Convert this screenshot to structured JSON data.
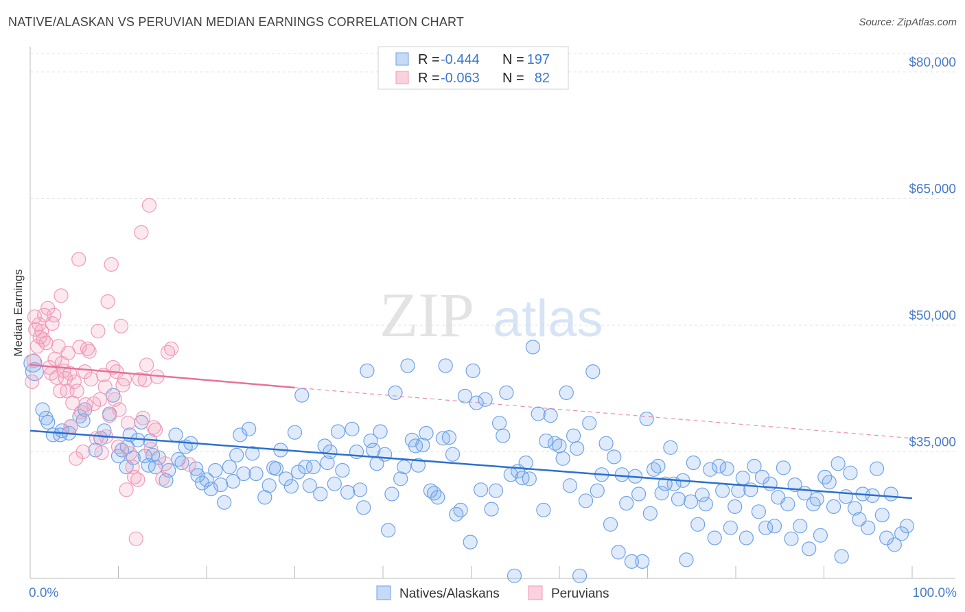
{
  "title": "NATIVE/ALASKAN VS PERUVIAN MEDIAN EARNINGS CORRELATION CHART",
  "source": "Source: ZipAtlas.com",
  "watermark": {
    "zip": "ZIP",
    "atlas": "atlas"
  },
  "legend_top": [
    {
      "r_label": "R =",
      "r_value": "-0.444",
      "n_label": "N =",
      "n_value": "197",
      "color": "#6fa2e8"
    },
    {
      "r_label": "R =",
      "r_value": "-0.063",
      "n_label": "N =",
      "n_value": "82",
      "color": "#f29ab8"
    }
  ],
  "chart_data": {
    "type": "scatter",
    "title": "NATIVE/ALASKAN VS PERUVIAN MEDIAN EARNINGS CORRELATION CHART",
    "ylabel": "Median Earnings",
    "xlabel": "",
    "xlim": [
      0,
      100
    ],
    "ylim": [
      20000,
      83000
    ],
    "x_tick_labels": [
      "0.0%",
      "100.0%"
    ],
    "y_ticks": [
      {
        "value": 35000,
        "label": "$35,000"
      },
      {
        "value": 50000,
        "label": "$50,000"
      },
      {
        "value": 65000,
        "label": "$65,000"
      },
      {
        "value": 80000,
        "label": "$80,000"
      }
    ],
    "grid": "horizontal dashed",
    "legend_position": "bottom-center",
    "series": [
      {
        "name": "Natives/Alaskans",
        "color": "#6fa2e8",
        "line_color": "#2c6fcf",
        "trend": {
          "x0": 0,
          "y0": 37500,
          "x1": 100,
          "y1": 29500
        },
        "points": [
          [
            0.3,
            45500
          ],
          [
            0.5,
            44500
          ],
          [
            1.4,
            40000
          ],
          [
            1.8,
            39000
          ],
          [
            2.0,
            38500
          ],
          [
            2.6,
            37000
          ],
          [
            3.4,
            37000
          ],
          [
            3.6,
            37500
          ],
          [
            4.4,
            37200
          ],
          [
            4.6,
            38000
          ],
          [
            5.6,
            39200
          ],
          [
            6.0,
            38700
          ],
          [
            6.2,
            40000
          ],
          [
            7.4,
            35200
          ],
          [
            8.0,
            36600
          ],
          [
            8.4,
            37500
          ],
          [
            9.0,
            39500
          ],
          [
            9.4,
            41700
          ],
          [
            10.0,
            34500
          ],
          [
            10.4,
            35200
          ],
          [
            10.9,
            33200
          ],
          [
            11.0,
            35600
          ],
          [
            11.3,
            37000
          ],
          [
            11.7,
            34300
          ],
          [
            12.2,
            36400
          ],
          [
            12.6,
            38500
          ],
          [
            13.0,
            34500
          ],
          [
            13.4,
            33400
          ],
          [
            13.6,
            36300
          ],
          [
            13.9,
            34600
          ],
          [
            14.2,
            33200
          ],
          [
            14.6,
            34300
          ],
          [
            15.4,
            31600
          ],
          [
            15.7,
            32800
          ],
          [
            16.5,
            37000
          ],
          [
            16.8,
            34100
          ],
          [
            17.2,
            33700
          ],
          [
            17.6,
            35600
          ],
          [
            18.2,
            36000
          ],
          [
            18.8,
            33000
          ],
          [
            19.0,
            32200
          ],
          [
            19.5,
            31300
          ],
          [
            20.0,
            31700
          ],
          [
            20.5,
            30600
          ],
          [
            21.0,
            32800
          ],
          [
            21.6,
            31100
          ],
          [
            22.0,
            29000
          ],
          [
            22.6,
            33200
          ],
          [
            23.0,
            31500
          ],
          [
            23.4,
            34600
          ],
          [
            23.8,
            37000
          ],
          [
            24.2,
            32400
          ],
          [
            24.8,
            37700
          ],
          [
            25.2,
            34800
          ],
          [
            25.6,
            32400
          ],
          [
            26.6,
            29600
          ],
          [
            27.1,
            31000
          ],
          [
            27.6,
            33100
          ],
          [
            27.9,
            33000
          ],
          [
            28.4,
            35200
          ],
          [
            29.0,
            31800
          ],
          [
            29.6,
            30900
          ],
          [
            30.0,
            37300
          ],
          [
            30.4,
            32600
          ],
          [
            30.8,
            41700
          ],
          [
            31.2,
            33200
          ],
          [
            31.7,
            31000
          ],
          [
            32.1,
            33200
          ],
          [
            32.9,
            30000
          ],
          [
            33.4,
            35700
          ],
          [
            33.7,
            33700
          ],
          [
            34.0,
            35000
          ],
          [
            34.5,
            31200
          ],
          [
            34.9,
            37400
          ],
          [
            35.4,
            32800
          ],
          [
            36.0,
            30200
          ],
          [
            36.5,
            37700
          ],
          [
            37.0,
            35000
          ],
          [
            37.4,
            30500
          ],
          [
            37.8,
            28400
          ],
          [
            38.2,
            44600
          ],
          [
            38.6,
            36300
          ],
          [
            38.9,
            35200
          ],
          [
            39.3,
            33600
          ],
          [
            39.7,
            37400
          ],
          [
            40.2,
            34700
          ],
          [
            40.6,
            25700
          ],
          [
            41.0,
            30000
          ],
          [
            41.4,
            42000
          ],
          [
            42.0,
            31800
          ],
          [
            42.4,
            33200
          ],
          [
            42.8,
            45200
          ],
          [
            43.3,
            36400
          ],
          [
            43.7,
            35700
          ],
          [
            44.0,
            33400
          ],
          [
            44.5,
            35800
          ],
          [
            44.9,
            37200
          ],
          [
            45.4,
            30400
          ],
          [
            45.8,
            30100
          ],
          [
            46.2,
            29600
          ],
          [
            46.8,
            36600
          ],
          [
            47.1,
            45200
          ],
          [
            47.5,
            36700
          ],
          [
            47.9,
            34700
          ],
          [
            48.3,
            27600
          ],
          [
            48.8,
            28100
          ],
          [
            49.3,
            41600
          ],
          [
            49.9,
            24300
          ],
          [
            50.6,
            40800
          ],
          [
            50.2,
            44600
          ],
          [
            51.1,
            30500
          ],
          [
            51.6,
            41200
          ],
          [
            52.3,
            28200
          ],
          [
            52.8,
            30400
          ],
          [
            53.2,
            38400
          ],
          [
            53.6,
            36900
          ],
          [
            54.0,
            42000
          ],
          [
            54.5,
            32300
          ],
          [
            54.9,
            20300
          ],
          [
            55.3,
            32700
          ],
          [
            55.8,
            31900
          ],
          [
            56.2,
            33700
          ],
          [
            56.6,
            31800
          ],
          [
            57.0,
            47400
          ],
          [
            57.6,
            39500
          ],
          [
            58.2,
            28100
          ],
          [
            58.5,
            36300
          ],
          [
            59.0,
            39300
          ],
          [
            59.5,
            36000
          ],
          [
            60.0,
            35700
          ],
          [
            60.4,
            34200
          ],
          [
            60.8,
            42000
          ],
          [
            61.2,
            31000
          ],
          [
            61.6,
            36900
          ],
          [
            62.0,
            35400
          ],
          [
            62.3,
            20300
          ],
          [
            63.0,
            29200
          ],
          [
            63.4,
            38400
          ],
          [
            63.8,
            44500
          ],
          [
            64.3,
            30400
          ],
          [
            64.8,
            32300
          ],
          [
            65.3,
            36000
          ],
          [
            65.8,
            26400
          ],
          [
            66.2,
            34400
          ],
          [
            66.7,
            23100
          ],
          [
            67.1,
            32300
          ],
          [
            67.6,
            28900
          ],
          [
            68.2,
            22000
          ],
          [
            68.6,
            32100
          ],
          [
            69.0,
            30000
          ],
          [
            69.4,
            22000
          ],
          [
            69.9,
            38900
          ],
          [
            70.3,
            27700
          ],
          [
            70.7,
            32900
          ],
          [
            71.2,
            33300
          ],
          [
            71.6,
            30100
          ],
          [
            72.0,
            31200
          ],
          [
            72.6,
            35500
          ],
          [
            73.0,
            31200
          ],
          [
            73.5,
            29400
          ],
          [
            74.0,
            31600
          ],
          [
            74.4,
            22200
          ],
          [
            74.9,
            29100
          ],
          [
            75.2,
            33700
          ],
          [
            75.7,
            26400
          ],
          [
            76.2,
            29900
          ],
          [
            76.6,
            28800
          ],
          [
            77.1,
            32900
          ],
          [
            77.6,
            24800
          ],
          [
            78.1,
            33300
          ],
          [
            78.5,
            30400
          ],
          [
            79.0,
            33000
          ],
          [
            79.4,
            26000
          ],
          [
            79.9,
            28500
          ],
          [
            80.3,
            30400
          ],
          [
            80.8,
            31900
          ],
          [
            81.2,
            24800
          ],
          [
            81.7,
            30500
          ],
          [
            82.1,
            33300
          ],
          [
            82.6,
            27900
          ],
          [
            83.0,
            32000
          ],
          [
            83.4,
            26000
          ],
          [
            83.9,
            31200
          ],
          [
            84.4,
            26200
          ],
          [
            84.8,
            29600
          ],
          [
            85.4,
            33100
          ],
          [
            85.9,
            28800
          ],
          [
            86.3,
            24700
          ],
          [
            86.7,
            31100
          ],
          [
            87.3,
            26200
          ],
          [
            87.8,
            30100
          ],
          [
            88.3,
            23500
          ],
          [
            88.8,
            28800
          ],
          [
            89.2,
            29400
          ],
          [
            89.6,
            25100
          ],
          [
            90.1,
            32000
          ],
          [
            90.6,
            31400
          ],
          [
            91.1,
            28500
          ],
          [
            91.6,
            33600
          ],
          [
            92.0,
            22600
          ],
          [
            92.5,
            29700
          ],
          [
            93.0,
            32500
          ],
          [
            93.5,
            28300
          ],
          [
            94.0,
            27000
          ],
          [
            94.4,
            30000
          ],
          [
            95.0,
            26000
          ],
          [
            95.5,
            29800
          ],
          [
            96.0,
            33000
          ],
          [
            96.6,
            27500
          ],
          [
            97.1,
            24800
          ],
          [
            97.6,
            30000
          ],
          [
            98.0,
            24000
          ],
          [
            98.8,
            25300
          ],
          [
            99.4,
            26200
          ]
        ]
      },
      {
        "name": "Peruvians",
        "color": "#f29ab8",
        "line_color": "#e8709a",
        "trend": {
          "x0": 0,
          "y0": 45300,
          "x1": 30,
          "y1": 42600
        },
        "trend_extension": {
          "x0": 30,
          "y0": 42600,
          "x1": 100,
          "y1": 36600
        },
        "points": [
          [
            0.2,
            43300
          ],
          [
            0.4,
            45800
          ],
          [
            0.5,
            51000
          ],
          [
            0.6,
            49500
          ],
          [
            0.8,
            47500
          ],
          [
            1.0,
            50100
          ],
          [
            1.1,
            48600
          ],
          [
            1.3,
            49300
          ],
          [
            1.5,
            48300
          ],
          [
            1.6,
            51200
          ],
          [
            1.8,
            47900
          ],
          [
            2.0,
            52000
          ],
          [
            2.2,
            45000
          ],
          [
            2.4,
            44300
          ],
          [
            2.5,
            50200
          ],
          [
            2.7,
            51200
          ],
          [
            2.8,
            46000
          ],
          [
            3.0,
            43800
          ],
          [
            3.2,
            47500
          ],
          [
            3.4,
            42200
          ],
          [
            3.5,
            53500
          ],
          [
            3.6,
            45500
          ],
          [
            3.8,
            44600
          ],
          [
            4.0,
            43700
          ],
          [
            4.2,
            42200
          ],
          [
            4.3,
            46700
          ],
          [
            4.5,
            44300
          ],
          [
            4.6,
            38000
          ],
          [
            4.8,
            40800
          ],
          [
            5.0,
            43300
          ],
          [
            5.2,
            34200
          ],
          [
            5.3,
            42200
          ],
          [
            5.5,
            57800
          ],
          [
            5.6,
            47400
          ],
          [
            5.8,
            39700
          ],
          [
            6.0,
            35000
          ],
          [
            6.2,
            44500
          ],
          [
            6.3,
            40600
          ],
          [
            6.5,
            47200
          ],
          [
            6.7,
            46900
          ],
          [
            6.9,
            43600
          ],
          [
            7.2,
            40700
          ],
          [
            7.5,
            36600
          ],
          [
            7.7,
            49300
          ],
          [
            7.9,
            41200
          ],
          [
            8.1,
            34900
          ],
          [
            8.3,
            44100
          ],
          [
            8.5,
            42700
          ],
          [
            8.6,
            36800
          ],
          [
            8.8,
            52800
          ],
          [
            9.0,
            39300
          ],
          [
            9.2,
            57200
          ],
          [
            9.4,
            45000
          ],
          [
            9.6,
            41200
          ],
          [
            9.8,
            44500
          ],
          [
            10.0,
            35600
          ],
          [
            10.1,
            40000
          ],
          [
            10.3,
            49900
          ],
          [
            10.5,
            42900
          ],
          [
            10.7,
            43600
          ],
          [
            10.9,
            30500
          ],
          [
            11.1,
            38400
          ],
          [
            11.3,
            34800
          ],
          [
            11.6,
            33200
          ],
          [
            11.8,
            32000
          ],
          [
            12.0,
            24700
          ],
          [
            12.2,
            31700
          ],
          [
            12.4,
            43600
          ],
          [
            12.6,
            61000
          ],
          [
            12.8,
            39000
          ],
          [
            13.0,
            43500
          ],
          [
            13.2,
            45300
          ],
          [
            13.5,
            64200
          ],
          [
            13.7,
            35300
          ],
          [
            14.0,
            37900
          ],
          [
            14.2,
            37600
          ],
          [
            14.4,
            43900
          ],
          [
            15.0,
            31800
          ],
          [
            15.3,
            33600
          ],
          [
            15.6,
            46800
          ],
          [
            16.0,
            47200
          ],
          [
            18.0,
            33500
          ]
        ]
      }
    ]
  },
  "legend_bottom": [
    {
      "label": "Natives/Alaskans",
      "color": "#6fa2e8"
    },
    {
      "label": "Peruvians",
      "color": "#f29ab8"
    }
  ]
}
